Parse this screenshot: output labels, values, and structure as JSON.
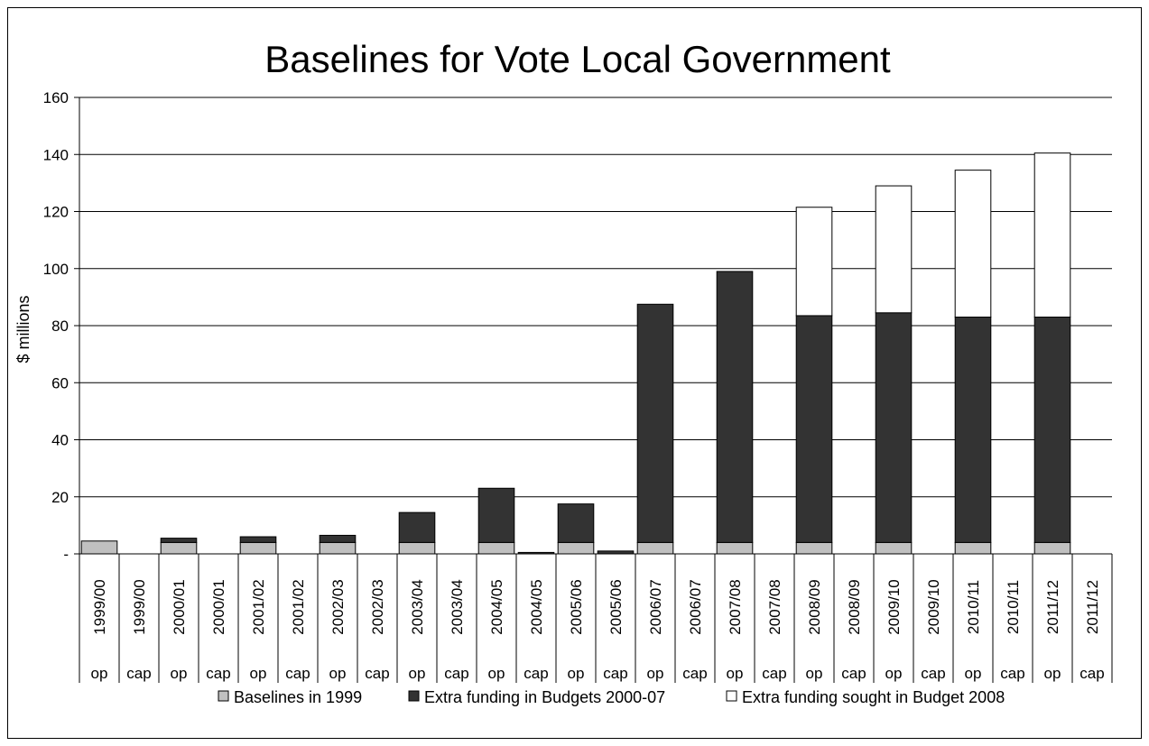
{
  "chart_data": {
    "type": "bar",
    "stacked": true,
    "title": "Baselines for Vote Local Government",
    "ylabel": "$ millions",
    "xlabel": "",
    "ylim": [
      0,
      160
    ],
    "yticks": [
      0,
      20,
      40,
      60,
      80,
      100,
      120,
      140,
      160
    ],
    "ytick_labels": [
      "-",
      "20",
      "40",
      "60",
      "80",
      "100",
      "120",
      "140",
      "160"
    ],
    "grid": true,
    "legend_position": "bottom",
    "categories": [
      {
        "year": "1999/00",
        "kind": "op"
      },
      {
        "year": "1999/00",
        "kind": "cap"
      },
      {
        "year": "2000/01",
        "kind": "op"
      },
      {
        "year": "2000/01",
        "kind": "cap"
      },
      {
        "year": "2001/02",
        "kind": "op"
      },
      {
        "year": "2001/02",
        "kind": "cap"
      },
      {
        "year": "2002/03",
        "kind": "op"
      },
      {
        "year": "2002/03",
        "kind": "cap"
      },
      {
        "year": "2003/04",
        "kind": "op"
      },
      {
        "year": "2003/04",
        "kind": "cap"
      },
      {
        "year": "2004/05",
        "kind": "op"
      },
      {
        "year": "2004/05",
        "kind": "cap"
      },
      {
        "year": "2005/06",
        "kind": "op"
      },
      {
        "year": "2005/06",
        "kind": "cap"
      },
      {
        "year": "2006/07",
        "kind": "op"
      },
      {
        "year": "2006/07",
        "kind": "cap"
      },
      {
        "year": "2007/08",
        "kind": "op"
      },
      {
        "year": "2007/08",
        "kind": "cap"
      },
      {
        "year": "2008/09",
        "kind": "op"
      },
      {
        "year": "2008/09",
        "kind": "cap"
      },
      {
        "year": "2009/10",
        "kind": "op"
      },
      {
        "year": "2009/10",
        "kind": "cap"
      },
      {
        "year": "2010/11",
        "kind": "op"
      },
      {
        "year": "2010/11",
        "kind": "cap"
      },
      {
        "year": "2011/12",
        "kind": "op"
      },
      {
        "year": "2011/12",
        "kind": "cap"
      }
    ],
    "series": [
      {
        "name": "Baselines in 1999",
        "color": "#c0c0c0",
        "values": [
          4.5,
          0,
          4,
          0,
          4,
          0,
          4,
          0,
          4,
          0,
          4,
          0,
          4,
          0,
          4,
          0,
          4,
          0,
          4,
          0,
          4,
          0,
          4,
          0,
          4,
          0
        ]
      },
      {
        "name": "Extra funding in Budgets 2000-07",
        "color": "#333333",
        "values": [
          0,
          0,
          1.5,
          0,
          2,
          0,
          2.5,
          0,
          10.5,
          0,
          19,
          0.5,
          13.5,
          1,
          83.5,
          0,
          95,
          0,
          79.5,
          0,
          80.5,
          0,
          79,
          0,
          79,
          0
        ]
      },
      {
        "name": "Extra funding sought in Budget 2008",
        "color": "#ffffff",
        "values": [
          0,
          0,
          0,
          0,
          0,
          0,
          0,
          0,
          0,
          0,
          0,
          0,
          0,
          0,
          0,
          0,
          0,
          0,
          38,
          0,
          44.5,
          0,
          51.5,
          0,
          57.5,
          0
        ]
      }
    ]
  }
}
